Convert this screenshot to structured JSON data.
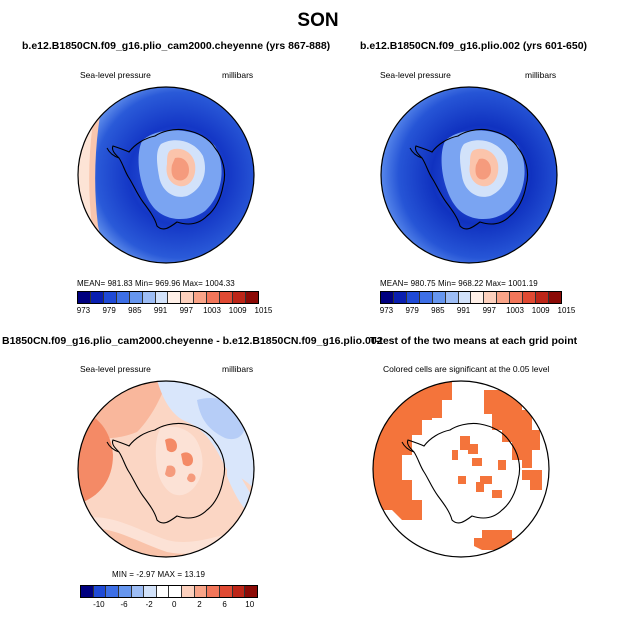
{
  "page_title": "SON",
  "panels": [
    {
      "title": "b.e12.B1850CN.f09_g16.plio_cam2000.cheyenne (yrs 867-888)",
      "left_label": "Sea-level pressure",
      "right_label": "millibars",
      "stats": "MEAN= 981.83   Min= 969.96   Max= 1004.33",
      "colorbar": {
        "labels": [
          "973",
          "979",
          "985",
          "991",
          "997",
          "1003",
          "1009",
          "1015"
        ],
        "colors": [
          "#00007f",
          "#0a1fb0",
          "#1f4ad6",
          "#3d6fe6",
          "#6696ef",
          "#9dbdf5",
          "#d2e2fa",
          "#fff0e8",
          "#fcd0bd",
          "#f9a488",
          "#f2765a",
          "#e04a33",
          "#bd2618",
          "#8b0a06"
        ]
      }
    },
    {
      "title": "b.e12.B1850CN.f09_g16.plio.002 (yrs 601-650)",
      "left_label": "Sea-level pressure",
      "right_label": "millibars",
      "stats": "MEAN= 980.75   Min= 968.22   Max= 1001.19",
      "colorbar": {
        "labels": [
          "973",
          "979",
          "985",
          "991",
          "997",
          "1003",
          "1009",
          "1015"
        ],
        "colors": [
          "#00007f",
          "#0a1fb0",
          "#1f4ad6",
          "#3d6fe6",
          "#6696ef",
          "#9dbdf5",
          "#d2e2fa",
          "#fff0e8",
          "#fcd0bd",
          "#f9a488",
          "#f2765a",
          "#e04a33",
          "#bd2618",
          "#8b0a06"
        ]
      }
    },
    {
      "title": "B1850CN.f09_g16.plio_cam2000.cheyenne - b.e12.B1850CN.f09_g16.plio.002",
      "left_label": "Sea-level pressure",
      "right_label": "millibars",
      "stats": "MIN =  -2.97  MAX =  13.19",
      "colorbar": {
        "labels": [
          "-10",
          "-6",
          "-2",
          "0",
          "2",
          "6",
          "10"
        ],
        "colors": [
          "#00007f",
          "#1f4ad6",
          "#3d6fe6",
          "#6696ef",
          "#9dbdf5",
          "#d2e2fa",
          "#ffffff",
          "#ffffff",
          "#fcd0bd",
          "#f9a488",
          "#f2765a",
          "#e04a33",
          "#bd2618",
          "#8b0a06"
        ]
      }
    },
    {
      "title": "T-test of the two means at each grid point",
      "subtitle": "Colored cells are significant at the 0.05 level"
    }
  ],
  "colors": {
    "low_deep": "#1133b8",
    "low_mid": "#2a56d8",
    "high_pale": "#fcd6c2",
    "high_mid": "#f5967a",
    "significant": "#f4743b"
  }
}
